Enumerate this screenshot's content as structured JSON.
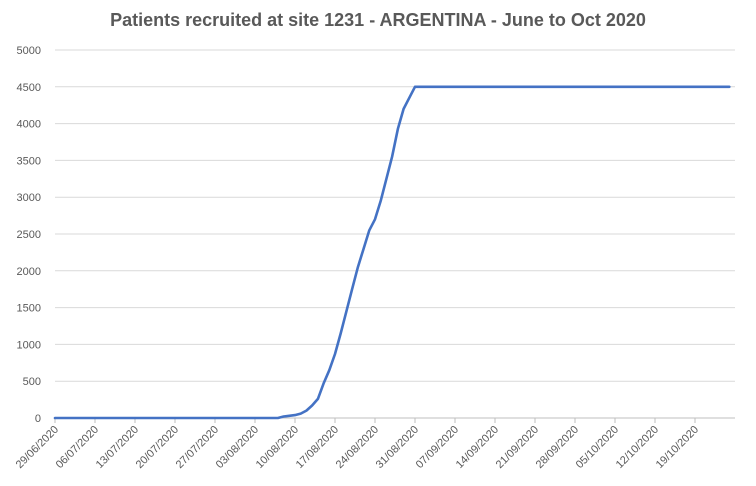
{
  "chart_data": {
    "type": "line",
    "title": "Patients recruited at site 1231 - ARGENTINA - June to Oct 2020",
    "xlabel": "",
    "ylabel": "",
    "ylim": [
      0,
      5000
    ],
    "yticks": [
      0,
      500,
      1000,
      1500,
      2000,
      2500,
      3000,
      3500,
      4000,
      4500,
      5000
    ],
    "xticks": [
      "29/06/2020",
      "06/07/2020",
      "13/07/2020",
      "20/07/2020",
      "27/07/2020",
      "03/08/2020",
      "10/08/2020",
      "17/08/2020",
      "24/08/2020",
      "31/08/2020",
      "07/09/2020",
      "14/09/2020",
      "21/09/2020",
      "28/09/2020",
      "05/10/2020",
      "12/10/2020",
      "19/10/2020"
    ],
    "xlim": [
      "29/06/2020",
      "26/10/2020"
    ],
    "grid": "horizontal",
    "line_color": "#4472C4",
    "series": [
      {
        "points": [
          [
            "29/06/2020",
            0
          ],
          [
            "06/07/2020",
            0
          ],
          [
            "13/07/2020",
            0
          ],
          [
            "20/07/2020",
            0
          ],
          [
            "27/07/2020",
            0
          ],
          [
            "03/08/2020",
            0
          ],
          [
            "07/08/2020",
            0
          ],
          [
            "08/08/2020",
            20
          ],
          [
            "09/08/2020",
            30
          ],
          [
            "10/08/2020",
            40
          ],
          [
            "11/08/2020",
            60
          ],
          [
            "12/08/2020",
            100
          ],
          [
            "13/08/2020",
            170
          ],
          [
            "14/08/2020",
            260
          ],
          [
            "15/08/2020",
            470
          ],
          [
            "16/08/2020",
            650
          ],
          [
            "17/08/2020",
            870
          ],
          [
            "18/08/2020",
            1150
          ],
          [
            "19/08/2020",
            1450
          ],
          [
            "20/08/2020",
            1750
          ],
          [
            "21/08/2020",
            2050
          ],
          [
            "22/08/2020",
            2300
          ],
          [
            "23/08/2020",
            2550
          ],
          [
            "24/08/2020",
            2700
          ],
          [
            "25/08/2020",
            2950
          ],
          [
            "26/08/2020",
            3250
          ],
          [
            "27/08/2020",
            3550
          ],
          [
            "28/08/2020",
            3930
          ],
          [
            "29/08/2020",
            4200
          ],
          [
            "30/08/2020",
            4350
          ],
          [
            "31/08/2020",
            4500
          ],
          [
            "07/09/2020",
            4500
          ],
          [
            "14/09/2020",
            4500
          ],
          [
            "21/09/2020",
            4500
          ],
          [
            "28/09/2020",
            4500
          ],
          [
            "05/10/2020",
            4500
          ],
          [
            "12/10/2020",
            4500
          ],
          [
            "19/10/2020",
            4500
          ],
          [
            "25/10/2020",
            4500
          ]
        ]
      }
    ]
  }
}
